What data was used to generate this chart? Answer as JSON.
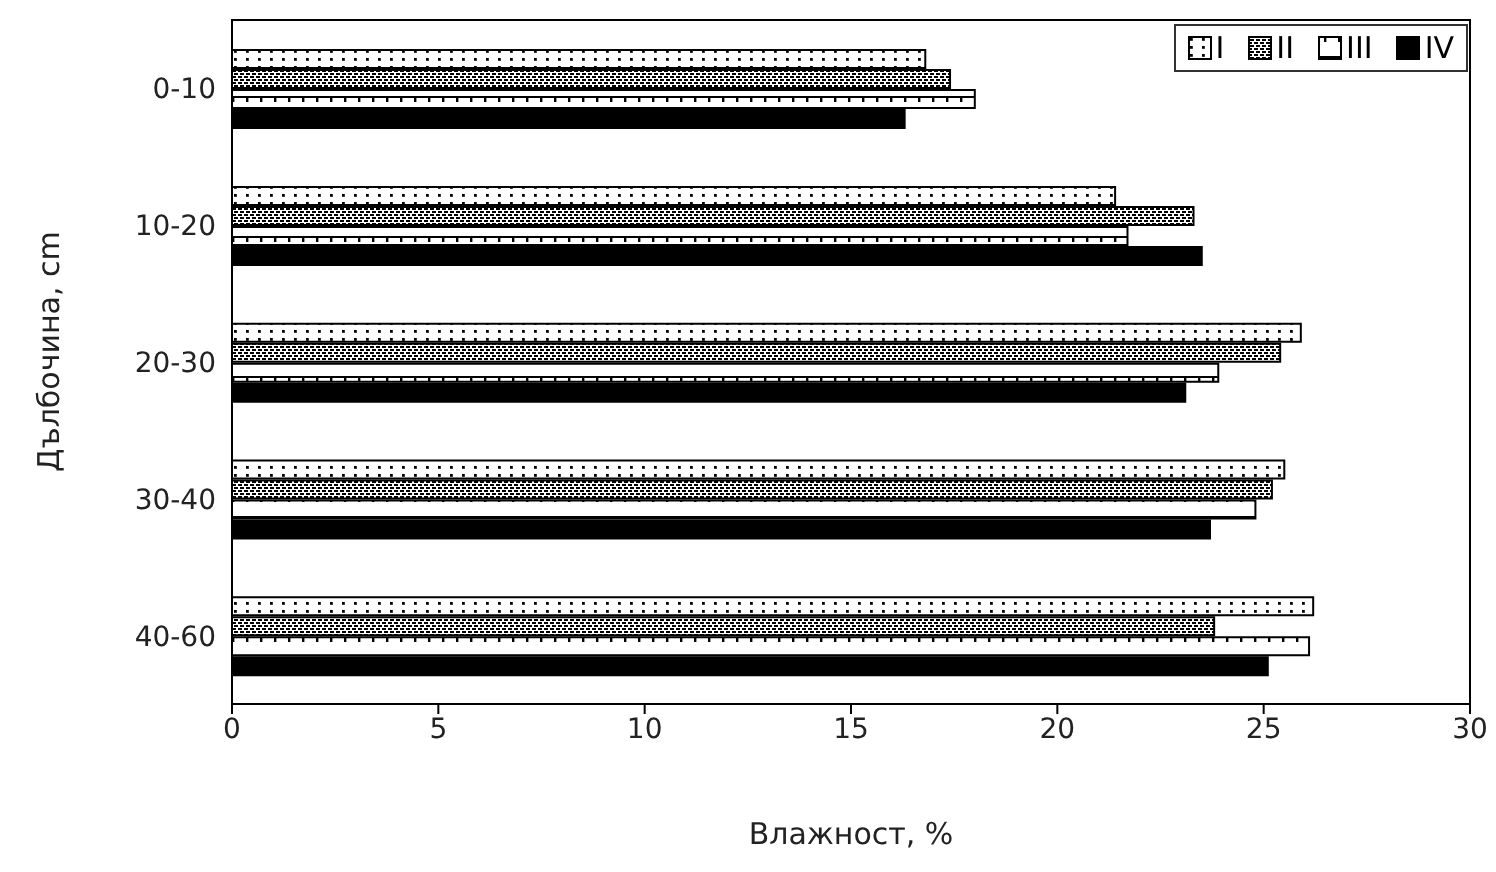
{
  "chart_data": {
    "type": "bar",
    "orientation": "horizontal",
    "xlabel": "Влажност, %",
    "ylabel": "Дълбочина, cm",
    "categories": [
      "0-10",
      "10-20",
      "20-30",
      "30-40",
      "40-60"
    ],
    "series": [
      {
        "name": "I",
        "color": "#000000",
        "values": [
          16.8,
          21.4,
          25.9,
          25.5,
          26.2
        ]
      },
      {
        "name": "II",
        "color": "#000000",
        "values": [
          17.4,
          23.3,
          25.4,
          25.2,
          23.8
        ]
      },
      {
        "name": "III",
        "color": "#000000",
        "values": [
          18.0,
          21.7,
          23.9,
          24.8,
          26.1
        ]
      },
      {
        "name": "IV",
        "color": "#000000",
        "values": [
          16.3,
          23.5,
          23.1,
          23.7,
          25.1
        ]
      }
    ],
    "xlim": [
      0,
      30
    ],
    "xticks": [
      0,
      5,
      10,
      15,
      20,
      25,
      30
    ],
    "grid": false,
    "legend": "top right"
  }
}
